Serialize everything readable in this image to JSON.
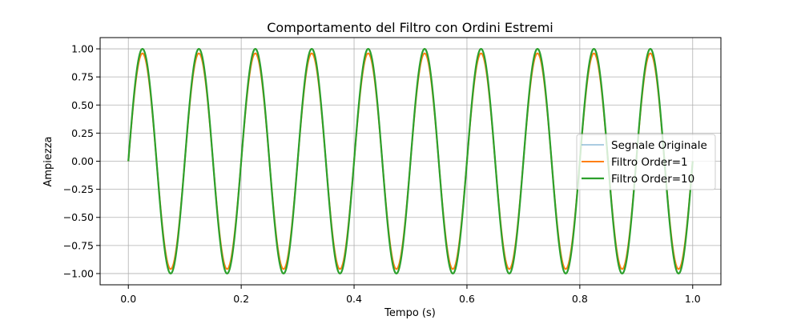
{
  "chart_data": {
    "type": "line",
    "title": "Comportamento del Filtro con Ordini Estremi",
    "xlabel": "Tempo (s)",
    "ylabel": "Ampiezza",
    "xlim": [
      -0.05,
      1.05
    ],
    "ylim": [
      -1.1,
      1.1
    ],
    "x_ticks": [
      0.0,
      0.2,
      0.4,
      0.6,
      0.8,
      1.0
    ],
    "x_tick_labels": [
      "0.0",
      "0.2",
      "0.4",
      "0.6",
      "0.8",
      "1.0"
    ],
    "y_ticks": [
      1.0,
      0.75,
      0.5,
      0.25,
      0.0,
      -0.25,
      -0.5,
      -0.75,
      -1.0
    ],
    "y_tick_labels": [
      "1.00",
      "0.75",
      "0.50",
      "0.25",
      "0.00",
      "−0.25",
      "−0.50",
      "−0.75",
      "−1.00"
    ],
    "grid": true,
    "legend_position": "center-right",
    "signal": {
      "function": "sine",
      "frequency_hz": 10,
      "t_start": 0.0,
      "t_end": 1.0
    },
    "series": [
      {
        "name": "Segnale Originale",
        "color": "#1f77b4",
        "opacity": 0.5,
        "amplitude": 1.0
      },
      {
        "name": "Filtro Order=1",
        "color": "#ff7f0e",
        "opacity": 1.0,
        "amplitude": 0.96
      },
      {
        "name": "Filtro Order=10",
        "color": "#2ca02c",
        "opacity": 1.0,
        "amplitude": 1.0
      }
    ]
  }
}
